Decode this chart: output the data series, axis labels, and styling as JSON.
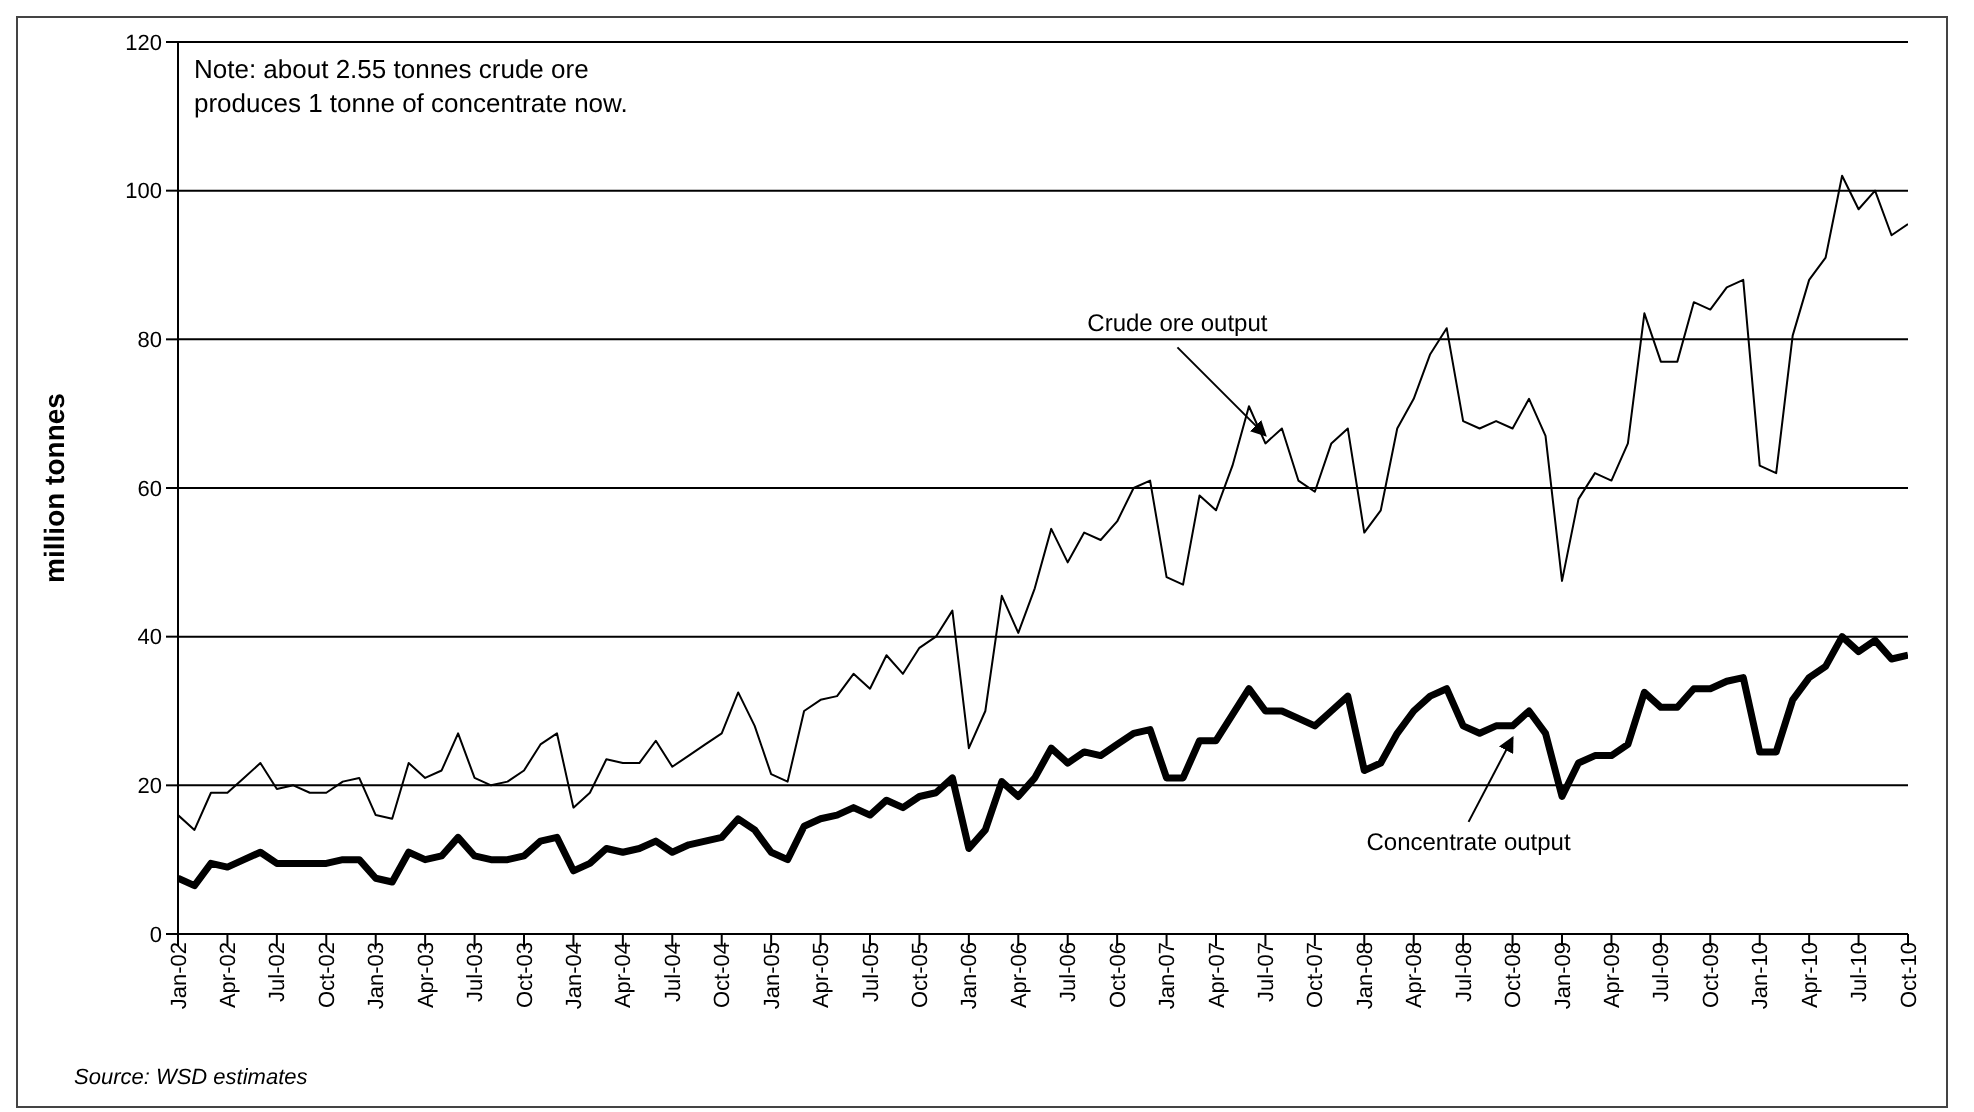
{
  "chart_data": {
    "type": "line",
    "ylabel": "million tonnes",
    "categories": [
      "Jan-02",
      null,
      null,
      "Apr-02",
      null,
      null,
      "Jul-02",
      null,
      null,
      "Oct-02",
      null,
      null,
      "Jan-03",
      null,
      null,
      "Apr-03",
      null,
      null,
      "Jul-03",
      null,
      null,
      "Oct-03",
      null,
      null,
      "Jan-04",
      null,
      null,
      "Apr-04",
      null,
      null,
      "Jul-04",
      null,
      null,
      "Oct-04",
      null,
      null,
      "Jan-05",
      null,
      null,
      "Apr-05",
      null,
      null,
      "Jul-05",
      null,
      null,
      "Oct-05",
      null,
      null,
      "Jan-06",
      null,
      null,
      "Apr-06",
      null,
      null,
      "Jul-06",
      null,
      null,
      "Oct-06",
      null,
      null,
      "Jan-07",
      null,
      null,
      "Apr-07",
      null,
      null,
      "Jul-07",
      null,
      null,
      "Oct-07",
      null,
      null,
      "Jan-08",
      null,
      null,
      "Apr-08",
      null,
      null,
      "Jul-08",
      null,
      null,
      "Oct-08",
      null,
      null,
      "Jan-09",
      null,
      null,
      "Apr-09",
      null,
      null,
      "Jul-09",
      null,
      null,
      "Oct-09",
      null,
      null,
      "Jan-10",
      null,
      null,
      "Apr-10",
      null,
      null,
      "Jul-10",
      null,
      null,
      "Oct-10"
    ],
    "series": [
      {
        "name": "Crude ore output",
        "color": "#000000",
        "values": [
          16,
          14,
          19,
          19,
          21,
          23,
          19.5,
          20,
          19,
          19,
          20.5,
          21,
          16,
          15.5,
          23,
          21,
          22,
          27,
          21,
          20,
          20.5,
          22,
          25.5,
          27,
          17,
          19,
          23.5,
          23,
          23,
          26,
          22.5,
          24,
          25.5,
          27,
          32.5,
          28,
          21.5,
          20.5,
          30,
          31.5,
          32,
          35,
          33,
          37.5,
          35,
          38.5,
          40,
          43.5,
          25,
          30,
          45.5,
          40.5,
          46.5,
          54.5,
          50,
          54,
          53,
          55.5,
          60,
          61,
          48,
          47,
          59,
          57,
          63,
          71,
          66,
          68,
          61,
          59.5,
          66,
          68,
          54,
          57,
          68,
          72,
          78,
          81.5,
          69,
          68,
          69,
          68,
          72,
          67,
          47.5,
          58.5,
          62,
          61,
          66,
          83.5,
          77,
          77,
          85,
          84,
          87,
          88,
          63,
          62,
          80.5,
          88,
          91,
          102,
          97.5,
          100,
          94,
          95.5
        ]
      },
      {
        "name": "Concentrate output",
        "color": "#000000",
        "values": [
          7.5,
          6.5,
          9.5,
          9,
          10,
          11,
          9.5,
          9.5,
          9.5,
          9.5,
          10,
          10,
          7.5,
          7,
          11,
          10,
          10.5,
          13,
          10.5,
          10,
          10,
          10.5,
          12.5,
          13,
          8.5,
          9.5,
          11.5,
          11,
          11.5,
          12.5,
          11,
          12,
          12.5,
          13,
          15.5,
          14,
          11,
          10,
          14.5,
          15.5,
          16,
          17,
          16,
          18,
          17,
          18.5,
          19,
          21,
          11.5,
          14,
          20.5,
          18.5,
          21,
          25,
          23,
          24.5,
          24,
          25.5,
          27,
          27.5,
          21,
          21,
          26,
          26,
          29.5,
          33,
          30,
          30,
          29,
          28,
          30,
          32,
          22,
          23,
          27,
          30,
          32,
          33,
          28,
          27,
          28,
          28,
          30,
          27,
          18.5,
          23,
          24,
          24,
          25.5,
          32.5,
          30.5,
          30.5,
          33,
          33,
          34,
          34.5,
          24.5,
          24.5,
          31.5,
          34.5,
          36,
          40,
          38,
          39.5,
          37,
          37.5
        ]
      }
    ],
    "ylim": [
      0,
      120
    ],
    "yticks": [
      0,
      20,
      40,
      60,
      80,
      100,
      120
    ],
    "grid": "y",
    "legend": false,
    "marker": "none",
    "line_style": "solid",
    "annotations": [
      "Note: about 2.55 tonnes crude ore\nproduces 1 tonne of concentrate now.",
      "Source: WSD estimates"
    ]
  }
}
